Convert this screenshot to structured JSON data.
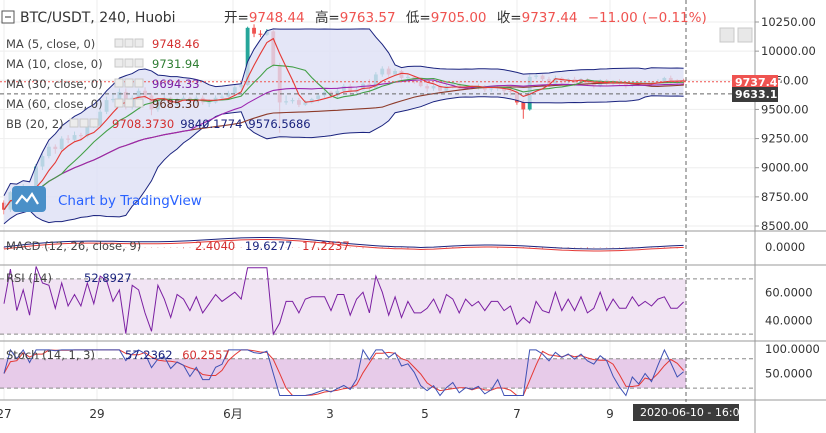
{
  "header": {
    "symbol": "BTC/USDT, 240, Huobi",
    "open_label": "开=",
    "open": "9748.44",
    "high_label": "高=",
    "high": "9763.57",
    "low_label": "低=",
    "low": "9705.00",
    "close_label": "收=",
    "close": "9737.44",
    "change": "−11.00 (−0.11%)"
  },
  "watermark": "Chart by TradingView",
  "legends": [
    {
      "label": "MA (5, close, 0)",
      "value": "9748.46",
      "color": "#d32f2f"
    },
    {
      "label": "MA (10, close, 0)",
      "value": "9731.94",
      "color": "#2e7d32"
    },
    {
      "label": "MA (30, close, 0)",
      "value": "9694.33",
      "color": "#7b1fa2"
    },
    {
      "label": "MA (60, close, 0)",
      "value": "9685.30",
      "color": "#5d2a1a"
    },
    {
      "label": "BB (20, 2)",
      "values": [
        "9708.3730",
        "9840.1774",
        "9576.5686"
      ],
      "colors": [
        "#d32f2f",
        "#1a237e",
        "#1a237e"
      ]
    }
  ],
  "macd": {
    "label": "MACD (12, 26, close, 9)",
    "values": [
      "2.4040",
      "19.6277",
      "17.2237"
    ],
    "colors": [
      "#d32f2f",
      "#1a237e",
      "#d32f2f"
    ]
  },
  "rsi": {
    "label": "RSI (14)",
    "value": "52.8927",
    "color": "#1a237e"
  },
  "stoch": {
    "label": "Stoch (14, 1, 3)",
    "values": [
      "57.2362",
      "60.2557"
    ],
    "colors": [
      "#1a237e",
      "#d32f2f"
    ]
  },
  "price_tags": {
    "last": "9737.44",
    "crosshair": "9633.10"
  },
  "time_tag": "2020-06-10 - 16:00",
  "colors": {
    "up": "#26a69a",
    "down": "#ef5350",
    "bb_fill": "#dde0f5",
    "pane_fill": "#f1e4f3",
    "grid": "#eeeeee"
  },
  "chart_data": [
    {
      "type": "candlestick",
      "title": "BTC/USDT, 240, Huobi",
      "x_ticks": [
        "27",
        "29",
        "6月",
        "3",
        "5",
        "7",
        "9"
      ],
      "y_ticks": [
        "10250.00",
        "10000.00",
        "9750.00",
        "9500.00",
        "9250.00",
        "9000.00",
        "8750.00",
        "8500.00"
      ],
      "ylim": [
        8500,
        10300
      ],
      "candles": [
        [
          8700,
          8640,
          8600,
          8720
        ],
        [
          8640,
          8790,
          8620,
          8800
        ],
        [
          8790,
          8760,
          8740,
          8830
        ],
        [
          8760,
          8820,
          8740,
          8860
        ],
        [
          8820,
          8770,
          8750,
          8840
        ],
        [
          8770,
          9010,
          8760,
          9030
        ],
        [
          9010,
          9100,
          8980,
          9120
        ],
        [
          9100,
          9180,
          9080,
          9210
        ],
        [
          9180,
          9160,
          9120,
          9200
        ],
        [
          9160,
          9250,
          9150,
          9270
        ],
        [
          9250,
          9240,
          9210,
          9280
        ],
        [
          9240,
          9280,
          9220,
          9310
        ],
        [
          9280,
          9270,
          9240,
          9300
        ],
        [
          9270,
          9360,
          9260,
          9390
        ],
        [
          9360,
          9360,
          9340,
          9380
        ],
        [
          9360,
          9480,
          9350,
          9500
        ],
        [
          9480,
          9580,
          9460,
          9610
        ],
        [
          9580,
          9590,
          9560,
          9640
        ],
        [
          9590,
          9650,
          9570,
          9680
        ],
        [
          9650,
          9520,
          9500,
          9680
        ],
        [
          9520,
          9600,
          9500,
          9620
        ],
        [
          9600,
          9660,
          9580,
          9680
        ],
        [
          9660,
          9620,
          9590,
          9690
        ],
        [
          9620,
          9500,
          9450,
          9640
        ],
        [
          9500,
          9580,
          9480,
          9600
        ],
        [
          9580,
          9600,
          9560,
          9630
        ],
        [
          9600,
          9540,
          9520,
          9610
        ],
        [
          9540,
          9580,
          9530,
          9600
        ],
        [
          9580,
          9600,
          9570,
          9620
        ],
        [
          9600,
          9570,
          9550,
          9610
        ],
        [
          9570,
          9600,
          9550,
          9620
        ],
        [
          9600,
          9560,
          9540,
          9620
        ],
        [
          9560,
          9560,
          9520,
          9590
        ],
        [
          9560,
          9600,
          9550,
          9620
        ],
        [
          9600,
          9610,
          9580,
          9640
        ],
        [
          9610,
          9640,
          9600,
          9660
        ],
        [
          9640,
          9690,
          9620,
          9710
        ],
        [
          9690,
          9710,
          9670,
          9740
        ],
        [
          9710,
          10200,
          9700,
          10210
        ],
        [
          10200,
          10150,
          10120,
          10230
        ],
        [
          10150,
          10140,
          10120,
          10180
        ],
        [
          10140,
          10170,
          10130,
          10190
        ],
        [
          10170,
          9880,
          9860,
          10180
        ],
        [
          9880,
          9560,
          9300,
          9900
        ],
        [
          9560,
          9570,
          9540,
          9620
        ],
        [
          9570,
          9580,
          9550,
          9600
        ],
        [
          9580,
          9540,
          9520,
          9600
        ],
        [
          9540,
          9560,
          9530,
          9580
        ],
        [
          9560,
          9590,
          9550,
          9600
        ],
        [
          9590,
          9620,
          9560,
          9640
        ],
        [
          9620,
          9650,
          9600,
          9670
        ],
        [
          9650,
          9620,
          9600,
          9660
        ],
        [
          9620,
          9660,
          9600,
          9680
        ],
        [
          9660,
          9700,
          9640,
          9720
        ],
        [
          9700,
          9650,
          9620,
          9720
        ],
        [
          9650,
          9670,
          9620,
          9690
        ],
        [
          9670,
          9720,
          9660,
          9740
        ],
        [
          9720,
          9680,
          9630,
          9760
        ],
        [
          9680,
          9800,
          9670,
          9820
        ],
        [
          9800,
          9850,
          9780,
          9870
        ],
        [
          9850,
          9800,
          9780,
          9870
        ],
        [
          9800,
          9830,
          9790,
          9850
        ],
        [
          9830,
          9770,
          9750,
          9840
        ],
        [
          9770,
          9780,
          9750,
          9800
        ],
        [
          9780,
          9740,
          9720,
          9790
        ],
        [
          9740,
          9700,
          9690,
          9760
        ],
        [
          9700,
          9680,
          9650,
          9720
        ],
        [
          9680,
          9700,
          9660,
          9720
        ],
        [
          9700,
          9660,
          9630,
          9720
        ],
        [
          9660,
          9700,
          9650,
          9720
        ],
        [
          9700,
          9720,
          9680,
          9740
        ],
        [
          9720,
          9680,
          9660,
          9740
        ],
        [
          9680,
          9700,
          9670,
          9710
        ],
        [
          9700,
          9690,
          9670,
          9710
        ],
        [
          9690,
          9700,
          9670,
          9720
        ],
        [
          9700,
          9670,
          9650,
          9710
        ],
        [
          9670,
          9680,
          9650,
          9700
        ],
        [
          9680,
          9690,
          9660,
          9700
        ],
        [
          9690,
          9660,
          9620,
          9700
        ],
        [
          9660,
          9650,
          9620,
          9680
        ],
        [
          9650,
          9560,
          9540,
          9670
        ],
        [
          9560,
          9500,
          9420,
          9580
        ],
        [
          9500,
          9780,
          9490,
          9800
        ],
        [
          9780,
          9790,
          9760,
          9810
        ],
        [
          9790,
          9760,
          9740,
          9800
        ],
        [
          9760,
          9720,
          9700,
          9780
        ],
        [
          9720,
          9770,
          9710,
          9790
        ],
        [
          9770,
          9740,
          9720,
          9780
        ],
        [
          9740,
          9760,
          9720,
          9770
        ],
        [
          9760,
          9730,
          9700,
          9780
        ],
        [
          9730,
          9760,
          9720,
          9770
        ],
        [
          9760,
          9720,
          9700,
          9770
        ],
        [
          9720,
          9700,
          9680,
          9730
        ],
        [
          9700,
          9750,
          9690,
          9760
        ],
        [
          9750,
          9720,
          9700,
          9760
        ],
        [
          9720,
          9740,
          9700,
          9750
        ],
        [
          9740,
          9720,
          9700,
          9760
        ],
        [
          9720,
          9700,
          9680,
          9740
        ],
        [
          9700,
          9730,
          9690,
          9740
        ],
        [
          9730,
          9720,
          9700,
          9740
        ],
        [
          9720,
          9730,
          9710,
          9740
        ],
        [
          9730,
          9720,
          9700,
          9740
        ],
        [
          9720,
          9740,
          9700,
          9760
        ],
        [
          9740,
          9770,
          9730,
          9780
        ],
        [
          9770,
          9750,
          9720,
          9790
        ],
        [
          9750,
          9730,
          9710,
          9760
        ],
        [
          9748.44,
          9737.44,
          9705,
          9763.57
        ]
      ]
    },
    {
      "type": "line",
      "title": "MACD (12, 26, close, 9)",
      "y_ticks": [
        "0.0000"
      ],
      "values_shown": [
        "2.4040",
        "19.6277",
        "17.2237"
      ]
    },
    {
      "type": "line",
      "title": "RSI (14)",
      "y_ticks": [
        "60.0000",
        "40.0000"
      ],
      "bands": [
        70,
        30
      ],
      "ylim": [
        25,
        80
      ],
      "last": 52.8927
    },
    {
      "type": "line",
      "title": "Stoch (14, 1, 3)",
      "y_ticks": [
        "100.0000",
        "50.0000"
      ],
      "bands": [
        80,
        20
      ],
      "ylim": [
        0,
        110
      ],
      "last_k": 57.2362,
      "last_d": 60.2557
    }
  ]
}
